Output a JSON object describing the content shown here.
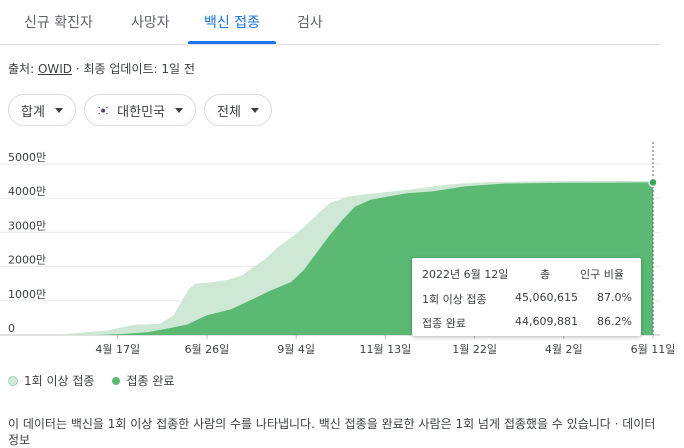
{
  "tabs": [
    {
      "label": "신규 확진자"
    },
    {
      "label": "사망자"
    },
    {
      "label": "백신 접종"
    },
    {
      "label": "검사"
    }
  ],
  "source": {
    "prefix": "출처: ",
    "link": "OWID",
    "suffix": " · 최종 업데이트: 1일 전"
  },
  "filters": {
    "metric": "합계",
    "country": "대한민국",
    "scope": "전체"
  },
  "colors": {
    "at_least_one": "#cfe8d6",
    "fully": "#5bb974",
    "accent": "#1a73e8"
  },
  "chart_data": {
    "type": "area",
    "title": "",
    "xlabel": "",
    "ylabel": "",
    "ylim": [
      0,
      50000000
    ],
    "y_ticks": [
      {
        "value": 0,
        "label": "0"
      },
      {
        "value": 10000000,
        "label": "1000만"
      },
      {
        "value": 20000000,
        "label": "2000만"
      },
      {
        "value": 30000000,
        "label": "3000만"
      },
      {
        "value": 40000000,
        "label": "4000만"
      },
      {
        "value": 50000000,
        "label": "5000만"
      }
    ],
    "x_range": [
      "2021-02-26",
      "2022-06-11"
    ],
    "x_ticks": [
      {
        "date": "2021-04-17",
        "label": "4월 17일"
      },
      {
        "date": "2021-06-26",
        "label": "6월 26일"
      },
      {
        "date": "2021-09-04",
        "label": "9월 4일"
      },
      {
        "date": "2021-11-13",
        "label": "11월 13일"
      },
      {
        "date": "2022-01-22",
        "label": "1월 22일"
      },
      {
        "date": "2022-04-02",
        "label": "4월 2일"
      },
      {
        "date": "2022-06-11",
        "label": "6월 11일"
      }
    ],
    "grid": true,
    "legend": "bottom-left",
    "series": [
      {
        "name": "1회 이상 접종",
        "points": [
          [
            "2021-02-26",
            0
          ],
          [
            "2021-03-20",
            700000
          ],
          [
            "2021-04-10",
            1400000
          ],
          [
            "2021-04-30",
            3000000
          ],
          [
            "2021-05-20",
            3300000
          ],
          [
            "2021-05-31",
            5800000
          ],
          [
            "2021-06-07",
            10500000
          ],
          [
            "2021-06-12",
            13500000
          ],
          [
            "2021-06-17",
            15000000
          ],
          [
            "2021-06-30",
            15400000
          ],
          [
            "2021-07-12",
            16100000
          ],
          [
            "2021-07-24",
            17500000
          ],
          [
            "2021-07-31",
            19500000
          ],
          [
            "2021-08-10",
            22000000
          ],
          [
            "2021-08-20",
            25500000
          ],
          [
            "2021-08-31",
            28500000
          ],
          [
            "2021-09-10",
            31500000
          ],
          [
            "2021-09-20",
            35000000
          ],
          [
            "2021-09-30",
            38500000
          ],
          [
            "2021-10-15",
            40500000
          ],
          [
            "2021-11-01",
            41300000
          ],
          [
            "2021-12-01",
            42500000
          ],
          [
            "2022-01-01",
            44000000
          ],
          [
            "2022-02-01",
            44700000
          ],
          [
            "2022-03-01",
            44900000
          ],
          [
            "2022-04-01",
            45000000
          ],
          [
            "2022-06-11",
            45060615
          ]
        ]
      },
      {
        "name": "접종 완료",
        "points": [
          [
            "2021-02-26",
            0
          ],
          [
            "2021-04-01",
            0
          ],
          [
            "2021-04-20",
            300000
          ],
          [
            "2021-05-10",
            800000
          ],
          [
            "2021-05-25",
            1800000
          ],
          [
            "2021-06-10",
            3000000
          ],
          [
            "2021-06-26",
            5800000
          ],
          [
            "2021-07-15",
            7500000
          ],
          [
            "2021-08-01",
            10500000
          ],
          [
            "2021-08-15",
            13000000
          ],
          [
            "2021-08-31",
            15500000
          ],
          [
            "2021-09-10",
            19000000
          ],
          [
            "2021-09-20",
            24000000
          ],
          [
            "2021-09-30",
            29000000
          ],
          [
            "2021-10-10",
            33500000
          ],
          [
            "2021-10-20",
            37500000
          ],
          [
            "2021-11-01",
            39500000
          ],
          [
            "2021-11-15",
            40500000
          ],
          [
            "2021-12-01",
            41500000
          ],
          [
            "2021-12-20",
            42000000
          ],
          [
            "2022-01-15",
            43500000
          ],
          [
            "2022-02-15",
            44300000
          ],
          [
            "2022-04-01",
            44500000
          ],
          [
            "2022-06-11",
            44609881
          ]
        ]
      }
    ],
    "tooltip": {
      "date": "2022년 6월 12일",
      "col_total": "총",
      "col_ratio": "인구 비율",
      "rows": [
        {
          "name": "1회 이상 접종",
          "total": "45,060,615",
          "ratio": "87.0%"
        },
        {
          "name": "접종 완료",
          "total": "44,609,881",
          "ratio": "86.2%"
        }
      ]
    }
  },
  "footnote": "이 데이터는 백신을 1회 이상 접종한 사람의 수를 나타냅니다. 백신 접종을 완료한 사람은 1회 넘게 접종했을 수 있습니다 · 데이터 정보"
}
